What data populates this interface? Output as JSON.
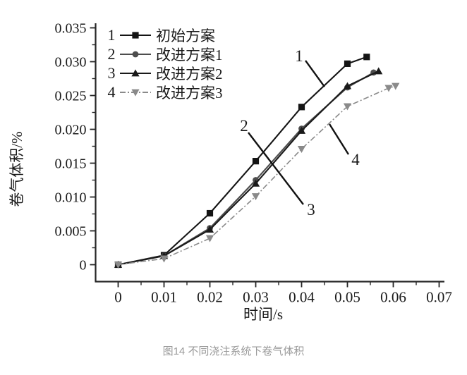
{
  "figure": {
    "caption": "图14 不同浇注系统下卷气体积"
  },
  "chart_data": {
    "type": "line",
    "title": "",
    "xlabel": "时间/s",
    "ylabel": "卷气体积/%",
    "xlim": [
      -0.005,
      0.0712
    ],
    "ylim": [
      -0.0025,
      0.0357
    ],
    "grid": false,
    "legend_position": "top-left-inside",
    "x_ticks": [
      0,
      0.01,
      0.02,
      0.03,
      0.04,
      0.05,
      0.06,
      0.07
    ],
    "x_tick_labels": [
      "0",
      "0.01",
      "0.02",
      "0.03",
      "0.04",
      "0.05",
      "0.06",
      "0.07"
    ],
    "y_ticks": [
      0,
      0.005,
      0.01,
      0.015,
      0.02,
      0.025,
      0.03,
      0.035
    ],
    "y_tick_labels": [
      "0",
      "0.005",
      "0.010",
      "0.015",
      "0.020",
      "0.025",
      "0.030",
      "0.035"
    ],
    "legend": [
      {
        "num": "1",
        "label": "初始方案"
      },
      {
        "num": "2",
        "label": "改进方案1"
      },
      {
        "num": "3",
        "label": "改进方案2"
      },
      {
        "num": "4",
        "label": "改进方案3"
      }
    ],
    "series": [
      {
        "id": "1",
        "name": "初始方案",
        "marker": "square",
        "color": "#141414",
        "dash": "",
        "width": 2.1,
        "points": [
          [
            0,
            0
          ],
          [
            0.01,
            0.0014
          ],
          [
            0.02,
            0.0076
          ],
          [
            0.03,
            0.0153
          ],
          [
            0.04,
            0.0233
          ],
          [
            0.05,
            0.0297
          ],
          [
            0.0542,
            0.0307
          ]
        ]
      },
      {
        "id": "2",
        "name": "改进方案1",
        "marker": "circle",
        "color": "#4d4d4d",
        "dash": "",
        "width": 2.1,
        "points": [
          [
            0,
            0
          ],
          [
            0.01,
            0.0013
          ],
          [
            0.02,
            0.0054
          ],
          [
            0.03,
            0.0125
          ],
          [
            0.04,
            0.0201
          ],
          [
            0.05,
            0.0262
          ],
          [
            0.0557,
            0.0284
          ]
        ]
      },
      {
        "id": "3",
        "name": "改进方案2",
        "marker": "triangle-up",
        "color": "#1a1a1a",
        "dash": "",
        "width": 2.1,
        "points": [
          [
            0,
            0
          ],
          [
            0.01,
            0.0013
          ],
          [
            0.02,
            0.0052
          ],
          [
            0.03,
            0.012
          ],
          [
            0.04,
            0.0198
          ],
          [
            0.05,
            0.0264
          ],
          [
            0.0568,
            0.0286
          ]
        ]
      },
      {
        "id": "4",
        "name": "改进方案3",
        "marker": "triangle-down",
        "color": "#8a8a8a",
        "dash": "8 3 2 3",
        "width": 1.6,
        "points": [
          [
            0,
            0
          ],
          [
            0.01,
            0.0009
          ],
          [
            0.02,
            0.0039
          ],
          [
            0.03,
            0.0101
          ],
          [
            0.04,
            0.0171
          ],
          [
            0.05,
            0.0234
          ],
          [
            0.059,
            0.0261
          ],
          [
            0.0605,
            0.0264
          ]
        ]
      }
    ],
    "annotations": [
      {
        "label": "1",
        "label_xy": [
          0.03946,
          0.03089
        ],
        "line": [
          [
            0.04085,
            0.03016
          ],
          [
            0.045,
            0.0263
          ]
        ]
      },
      {
        "label": "2",
        "label_xy": [
          0.02746,
          0.02057
        ],
        "line": [
          [
            0.02838,
            0.01953
          ],
          [
            0.04038,
            0.00891
          ]
        ]
      },
      {
        "label": "3",
        "label_xy": [
          0.04208,
          0.00818
        ],
        "line": null
      },
      {
        "label": "4",
        "label_xy": [
          0.05177,
          0.01557
        ],
        "line": [
          [
            0.04608,
            0.02078
          ],
          [
            0.05023,
            0.0163
          ]
        ]
      }
    ],
    "colors": {
      "axis": "#262626",
      "text": "#1a1a1a",
      "caption": "#9a9a9a"
    }
  }
}
